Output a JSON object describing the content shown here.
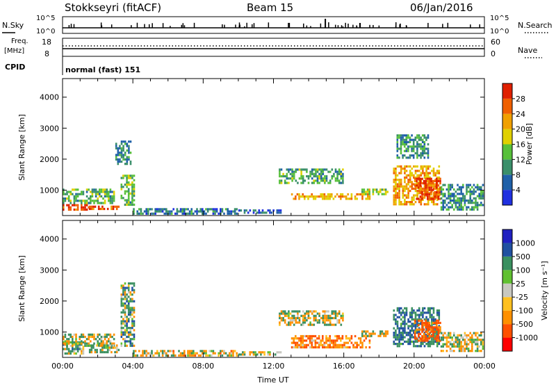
{
  "header": {
    "station": "Stokkseyri (fitACF)",
    "beam": "Beam 15",
    "date": "06/Jan/2016"
  },
  "status_panels": {
    "nsky": {
      "label": "N.Sky",
      "ticks": [
        "10^5",
        "10^0"
      ]
    },
    "nsearch": {
      "label": "N.Search",
      "ticks": [
        "10^5",
        "10^0"
      ]
    },
    "freq": {
      "label_top": "Freq.",
      "label_unit": "[MHz]",
      "ticks": [
        "18",
        "8"
      ]
    },
    "nave": {
      "label": "Nave",
      "ticks": [
        "60",
        "0"
      ]
    },
    "cpid": {
      "label": "CPID",
      "value": "normal (fast) 151"
    }
  },
  "colors": {
    "power_scale": [
      "#2030e0",
      "#1f60a8",
      "#3a8f6a",
      "#57c03a",
      "#e0d000",
      "#f0a000",
      "#f06000",
      "#e02000"
    ],
    "velocity_scale": [
      "#ff0000",
      "#ff5000",
      "#ff9000",
      "#ffc020",
      "#c8c8c0",
      "#60c030",
      "#3a9060",
      "#2050a0",
      "#2020c0"
    ]
  },
  "chart_data": [
    {
      "type": "heatmap",
      "panel": "power",
      "xlabel": "Time UT",
      "ylabel": "Slant Range [km]",
      "x_ticks": [
        "00:00",
        "04:00",
        "08:00",
        "12:00",
        "16:00",
        "20:00",
        "00:00"
      ],
      "xlim_hours": [
        0,
        24
      ],
      "y_ticks": [
        1000,
        2000,
        3000,
        4000
      ],
      "ylim": [
        180,
        4600
      ],
      "colorbar_label": "Power [dB]",
      "colorbar_ticks": [
        "28",
        "24",
        "20",
        "16",
        "12",
        "8",
        "4"
      ],
      "colorbar_range": [
        0,
        30
      ],
      "echo_regions": [
        {
          "t": [
            0.0,
            1.5
          ],
          "r": [
            300,
            550
          ],
          "level": 27
        },
        {
          "t": [
            0.0,
            3.0
          ],
          "r": [
            550,
            1050
          ],
          "level": 12
        },
        {
          "t": [
            1.5,
            3.2
          ],
          "r": [
            350,
            500
          ],
          "level": 25
        },
        {
          "t": [
            3.3,
            4.1
          ],
          "r": [
            500,
            1500
          ],
          "level": 12
        },
        {
          "t": [
            3.0,
            3.9
          ],
          "r": [
            1800,
            2600
          ],
          "level": 9
        },
        {
          "t": [
            4.0,
            10.0
          ],
          "r": [
            220,
            420
          ],
          "level": 7
        },
        {
          "t": [
            10.0,
            12.5
          ],
          "r": [
            220,
            380
          ],
          "level": 6
        },
        {
          "t": [
            12.3,
            16.0
          ],
          "r": [
            1200,
            1700
          ],
          "level": 11
        },
        {
          "t": [
            13.0,
            17.5
          ],
          "r": [
            650,
            900
          ],
          "level": 20
        },
        {
          "t": [
            17.0,
            18.5
          ],
          "r": [
            800,
            1050
          ],
          "level": 14
        },
        {
          "t": [
            18.8,
            21.5
          ],
          "r": [
            500,
            1800
          ],
          "level": 20
        },
        {
          "t": [
            20.0,
            21.5
          ],
          "r": [
            700,
            1400
          ],
          "level": 26
        },
        {
          "t": [
            21.5,
            24.0
          ],
          "r": [
            350,
            1200
          ],
          "level": 9
        },
        {
          "t": [
            19.0,
            20.8
          ],
          "r": [
            2000,
            2800
          ],
          "level": 9
        }
      ]
    },
    {
      "type": "heatmap",
      "panel": "velocity",
      "xlabel": "Time UT",
      "ylabel": "Slant Range [km]",
      "x_ticks": [
        "00:00",
        "04:00",
        "08:00",
        "12:00",
        "16:00",
        "20:00",
        "00:00"
      ],
      "xlim_hours": [
        0,
        24
      ],
      "y_ticks": [
        1000,
        2000,
        3000,
        4000
      ],
      "ylim": [
        180,
        4600
      ],
      "colorbar_label": "Velocity [m s⁻¹]",
      "colorbar_ticks": [
        "1000",
        "500",
        "100",
        "25",
        "-25",
        "-100",
        "-500",
        "-1000"
      ],
      "colorbar_range": [
        -1000,
        1000
      ],
      "echo_regions": [
        {
          "t": [
            0.0,
            1.2
          ],
          "r": [
            250,
            700
          ],
          "level": 120
        },
        {
          "t": [
            0.0,
            3.0
          ],
          "r": [
            550,
            950
          ],
          "level": 0
        },
        {
          "t": [
            1.5,
            3.2
          ],
          "r": [
            300,
            600
          ],
          "level": 60
        },
        {
          "t": [
            3.3,
            4.1
          ],
          "r": [
            500,
            2600
          ],
          "level": 150
        },
        {
          "t": [
            4.0,
            10.0
          ],
          "r": [
            220,
            420
          ],
          "level": -80
        },
        {
          "t": [
            10.0,
            12.5
          ],
          "r": [
            220,
            380
          ],
          "level": 0
        },
        {
          "t": [
            12.3,
            16.0
          ],
          "r": [
            1200,
            1700
          ],
          "level": 0
        },
        {
          "t": [
            13.0,
            17.5
          ],
          "r": [
            500,
            900
          ],
          "level": -250
        },
        {
          "t": [
            17.0,
            18.5
          ],
          "r": [
            800,
            1050
          ],
          "level": -60
        },
        {
          "t": [
            18.8,
            21.5
          ],
          "r": [
            500,
            1800
          ],
          "level": 300
        },
        {
          "t": [
            20.0,
            21.5
          ],
          "r": [
            700,
            1400
          ],
          "level": -400
        },
        {
          "t": [
            21.5,
            24.0
          ],
          "r": [
            350,
            1000
          ],
          "level": 0
        }
      ]
    }
  ]
}
